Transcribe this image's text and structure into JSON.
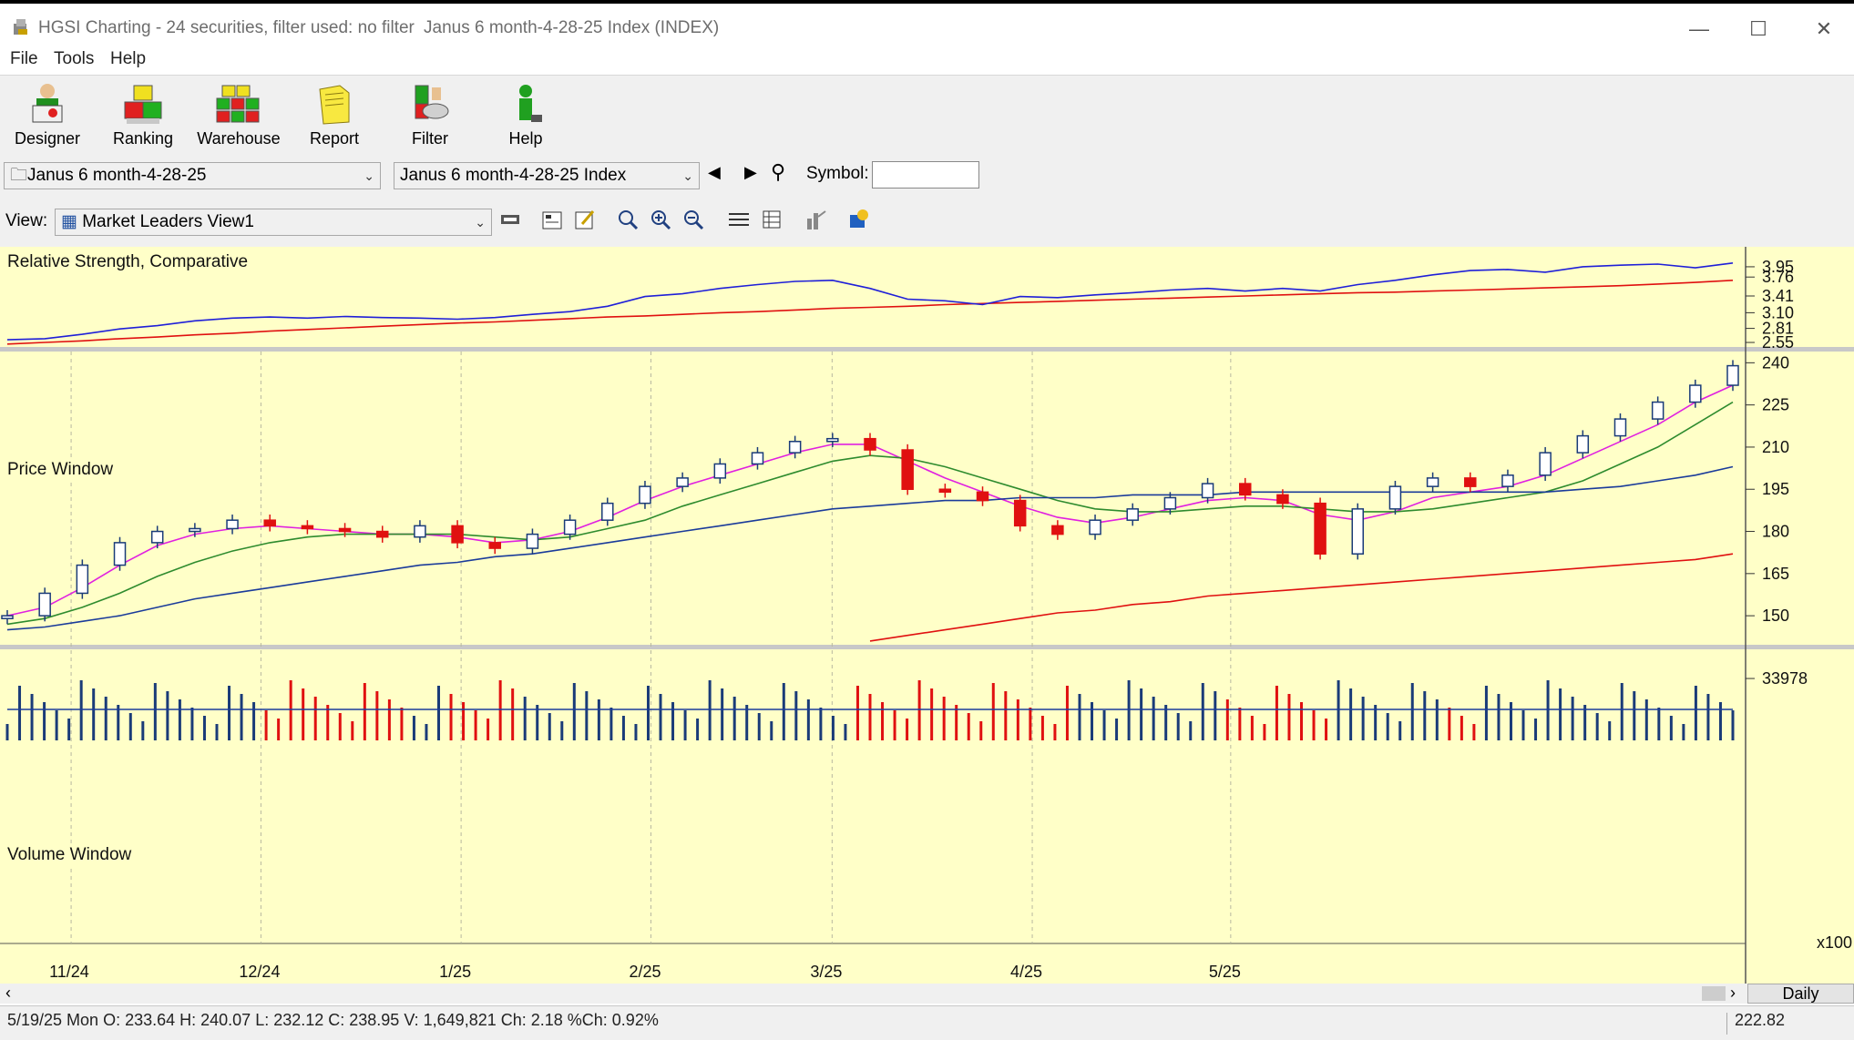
{
  "window": {
    "app_title": "HGSI Charting - 24 securities, filter used: no filter",
    "doc_title": "Janus 6 month-4-28-25 Index (INDEX)",
    "minimize": "—",
    "maximize": "☐",
    "close": "✕"
  },
  "menu": [
    "File",
    "Tools",
    "Help"
  ],
  "toolbar": [
    {
      "label": "Designer",
      "icon": "designer-icon"
    },
    {
      "label": "Ranking",
      "icon": "ranking-icon"
    },
    {
      "label": "Warehouse",
      "icon": "warehouse-icon"
    },
    {
      "label": "Report",
      "icon": "report-icon"
    },
    {
      "label": "Filter",
      "icon": "filter-icon"
    },
    {
      "label": "Help",
      "icon": "help-icon"
    }
  ],
  "selectors": {
    "list": "Janus 6 month-4-28-25",
    "security": "Janus 6 month-4-28-25 Index",
    "symbol_label": "Symbol:",
    "symbol_value": ""
  },
  "view": {
    "label": "View:",
    "value": "Market Leaders View1"
  },
  "panels": {
    "rs_title": "Relative Strength, Comparative",
    "price_title": "Price Window",
    "volume_title": "Volume Window",
    "rs_ticks": [
      "3.95",
      "3.76",
      "3.41",
      "3.10",
      "2.81",
      "2.55"
    ],
    "price_ticks": [
      "240",
      "225",
      "210",
      "195",
      "180",
      "165",
      "150"
    ],
    "volume_tick": "33978",
    "volume_unit": "x100",
    "date_labels": [
      "11/24",
      "12/24",
      "1/25",
      "2/25",
      "3/25",
      "4/25",
      "5/25"
    ]
  },
  "period": "Daily",
  "status": {
    "text": "5/19/25 Mon O: 233.64 H: 240.07 L: 232.12 C: 238.95 V: 1,649,821 Ch: 2.18 %Ch: 0.92%",
    "cursor_value": "222.82"
  },
  "colors": {
    "chart_bg": "#ffffc8",
    "rs_line": "#1f1fd8",
    "rs_avg": "#e01010",
    "up_candle": "#1a3b78",
    "down_candle": "#e01010",
    "ma_short": "#e020e0",
    "ma_mid": "#2e8b2e",
    "ma_long": "#1a3b9a",
    "ma_200": "#e01010"
  },
  "chart_data": {
    "type": "line",
    "title": "Janus 6 month-4-28-25 Index",
    "x_labels": [
      "11/24",
      "12/24",
      "1/25",
      "2/25",
      "3/25",
      "4/25",
      "5/25"
    ],
    "price_ylim": [
      140,
      244
    ],
    "price_close_weekly": [
      150,
      158,
      168,
      176,
      180,
      181,
      184,
      182,
      181,
      180,
      178,
      182,
      176,
      174,
      179,
      184,
      190,
      196,
      199,
      204,
      208,
      212,
      213,
      209,
      195,
      194,
      191,
      182,
      179,
      184,
      188,
      192,
      197,
      193,
      190,
      172,
      188,
      196,
      199,
      196,
      200,
      208,
      214,
      220,
      226,
      232,
      238.95
    ],
    "series": [
      {
        "name": "MA short",
        "values": [
          150,
          153,
          160,
          168,
          175,
          179,
          181,
          182,
          181,
          180,
          179,
          179,
          178,
          176,
          177,
          180,
          185,
          191,
          196,
          200,
          204,
          208,
          211,
          211,
          205,
          199,
          194,
          189,
          185,
          183,
          185,
          188,
          191,
          192,
          191,
          186,
          184,
          187,
          192,
          194,
          196,
          200,
          206,
          212,
          218,
          226,
          232
        ]
      },
      {
        "name": "MA mid",
        "values": [
          147,
          149,
          153,
          158,
          164,
          169,
          173,
          176,
          178,
          179,
          179,
          179,
          179,
          178,
          177,
          178,
          181,
          184,
          189,
          193,
          197,
          201,
          205,
          207,
          206,
          203,
          199,
          195,
          191,
          188,
          187,
          187,
          188,
          189,
          189,
          188,
          187,
          187,
          188,
          190,
          192,
          194,
          198,
          204,
          210,
          218,
          226
        ]
      },
      {
        "name": "MA long",
        "values": [
          145,
          146,
          148,
          150,
          153,
          156,
          158,
          160,
          162,
          164,
          166,
          168,
          169,
          171,
          172,
          174,
          176,
          178,
          180,
          182,
          184,
          186,
          188,
          189,
          190,
          191,
          191,
          192,
          192,
          192,
          193,
          193,
          193,
          194,
          194,
          194,
          194,
          194,
          194,
          194,
          194,
          194,
          195,
          196,
          198,
          200,
          203
        ]
      },
      {
        "name": "MA 200",
        "values": [
          null,
          null,
          null,
          null,
          null,
          null,
          null,
          null,
          null,
          null,
          null,
          null,
          null,
          null,
          null,
          null,
          null,
          null,
          null,
          null,
          null,
          null,
          null,
          141,
          143,
          145,
          147,
          149,
          151,
          152,
          154,
          155,
          157,
          158,
          159,
          160,
          161,
          162,
          163,
          164,
          165,
          166,
          167,
          168,
          169,
          170,
          172
        ]
      }
    ],
    "rs_ylim": [
      2.5,
      4.05
    ],
    "rs_values": [
      2.6,
      2.62,
      2.7,
      2.8,
      2.86,
      2.95,
      3.0,
      3.02,
      3.0,
      3.03,
      3.01,
      3.0,
      2.98,
      3.01,
      3.07,
      3.12,
      3.22,
      3.4,
      3.45,
      3.55,
      3.62,
      3.68,
      3.7,
      3.55,
      3.35,
      3.32,
      3.25,
      3.4,
      3.38,
      3.43,
      3.47,
      3.52,
      3.55,
      3.5,
      3.55,
      3.5,
      3.62,
      3.7,
      3.8,
      3.88,
      3.9,
      3.85,
      3.95,
      3.98,
      4.0,
      3.93,
      4.02
    ],
    "rs_avg": [
      2.52,
      2.55,
      2.58,
      2.62,
      2.65,
      2.69,
      2.72,
      2.76,
      2.79,
      2.82,
      2.85,
      2.88,
      2.91,
      2.93,
      2.96,
      2.99,
      3.02,
      3.04,
      3.07,
      3.1,
      3.12,
      3.15,
      3.18,
      3.2,
      3.22,
      3.25,
      3.27,
      3.29,
      3.31,
      3.33,
      3.35,
      3.37,
      3.39,
      3.41,
      3.43,
      3.45,
      3.47,
      3.48,
      3.5,
      3.52,
      3.54,
      3.56,
      3.58,
      3.6,
      3.63,
      3.66,
      3.7
    ],
    "volume_ylim": [
      0,
      50000
    ],
    "volume_avg": 17000
  }
}
